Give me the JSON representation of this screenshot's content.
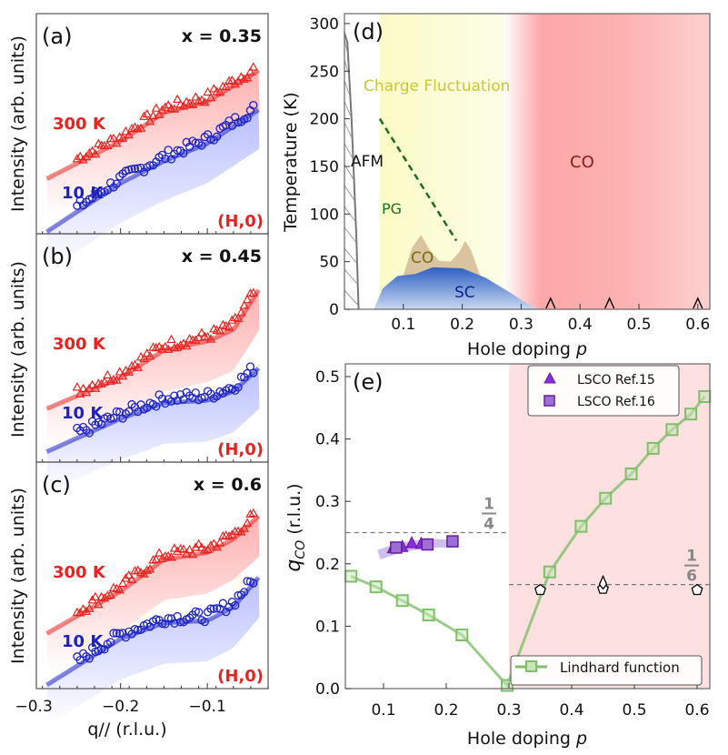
{
  "chart_data": [
    {
      "panel": "(a)",
      "type": "scatter",
      "composition": "x = 0.35",
      "direction": "(H,0)",
      "xlabel": "q// (r.l.u.)",
      "ylabel": "Intensity (arb. units)",
      "xlim": [
        -0.297,
        -0.03
      ],
      "xticks": [
        "−0.3",
        "−0.2",
        "−0.1"
      ],
      "x": [
        -0.25,
        -0.2,
        -0.15,
        -0.1,
        -0.05
      ],
      "series": [
        {
          "name": "300 K",
          "marker": "triangle",
          "color": "#e8231f",
          "values": [
            0.34,
            0.44,
            0.57,
            0.62,
            0.74
          ]
        },
        {
          "name": "10 K",
          "marker": "circle",
          "color": "#1c22c4",
          "values": [
            0.12,
            0.25,
            0.35,
            0.43,
            0.56
          ]
        }
      ]
    },
    {
      "panel": "(b)",
      "type": "scatter",
      "composition": "x = 0.45",
      "direction": "(H,0)",
      "ylabel": "Intensity (arb. units)",
      "x": [
        -0.25,
        -0.2,
        -0.15,
        -0.1,
        -0.07,
        -0.05
      ],
      "series": [
        {
          "name": "300 K",
          "marker": "triangle",
          "color": "#e8231f",
          "values": [
            0.31,
            0.39,
            0.51,
            0.55,
            0.6,
            0.72
          ]
        },
        {
          "name": "10 K",
          "marker": "circle",
          "color": "#1c22c4",
          "values": [
            0.125,
            0.21,
            0.28,
            0.29,
            0.33,
            0.4
          ]
        }
      ]
    },
    {
      "panel": "(c)",
      "type": "scatter",
      "composition": "x = 0.6",
      "direction": "(H,0)",
      "ylabel": "Intensity (arb. units)",
      "x": [
        -0.25,
        -0.2,
        -0.15,
        -0.1,
        -0.07,
        -0.05
      ],
      "series": [
        {
          "name": "300 K",
          "marker": "triangle",
          "color": "#e8231f",
          "values": [
            0.34,
            0.45,
            0.59,
            0.62,
            0.68,
            0.75
          ]
        },
        {
          "name": "10 K",
          "marker": "circle",
          "color": "#1c22c4",
          "values": [
            0.12,
            0.24,
            0.31,
            0.32,
            0.38,
            0.47
          ]
        }
      ]
    },
    {
      "panel": "(d)",
      "type": "area",
      "xlabel": "Hole doping p",
      "ylabel": "Temperature (K)",
      "xlim": [
        0,
        0.62
      ],
      "ylim": [
        0,
        310
      ],
      "xticks": [
        "0.1",
        "0.2",
        "0.3",
        "0.4",
        "0.5",
        "0.6"
      ],
      "yticks": [
        "0",
        "50",
        "100",
        "150",
        "200",
        "250",
        "300"
      ],
      "regions": {
        "afm": {
          "label": "AFM",
          "x": [
            0,
            0.005,
            0.012,
            0.02,
            0.024
          ],
          "y": [
            290,
            280,
            200,
            80,
            0
          ]
        },
        "charge_fluctuation": {
          "label": "Charge Fluctuation",
          "p_range": [
            0.06,
            0.27
          ],
          "color": "#fdfdd8"
        },
        "co_overdoped": {
          "label": "CO",
          "p_from": 0.3,
          "color": "#fda8a8"
        },
        "pg": {
          "label": "PG",
          "line": [
            [
              0.06,
              200
            ],
            [
              0.19,
              72
            ]
          ],
          "color": "#1d6e1d"
        },
        "co_dome": {
          "label": "CO",
          "color": "#d9c49f",
          "points": [
            [
              0.1,
              36
            ],
            [
              0.115,
              65
            ],
            [
              0.13,
              78
            ],
            [
              0.145,
              62
            ],
            [
              0.16,
              51
            ],
            [
              0.18,
              50
            ],
            [
              0.195,
              60
            ],
            [
              0.205,
              72
            ],
            [
              0.215,
              62
            ],
            [
              0.23,
              36
            ]
          ]
        },
        "sc_dome": {
          "label": "SC",
          "color": "#3a6cc8",
          "points": [
            [
              0.05,
              0
            ],
            [
              0.065,
              22
            ],
            [
              0.09,
              35
            ],
            [
              0.12,
              37
            ],
            [
              0.15,
              44
            ],
            [
              0.2,
              43
            ],
            [
              0.24,
              33
            ],
            [
              0.28,
              18
            ],
            [
              0.31,
              6
            ],
            [
              0.33,
              0
            ]
          ]
        }
      },
      "samples": {
        "marker": "open-triangle",
        "x": [
          0.35,
          0.45,
          0.6
        ],
        "y": [
          0,
          0,
          0
        ]
      }
    },
    {
      "panel": "(e)",
      "type": "line",
      "xlabel": "Hole doping p",
      "ylabel": "q_CO (r.l.u.)",
      "xlim": [
        0.04,
        0.62
      ],
      "ylim": [
        0,
        0.52
      ],
      "xticks": [
        "0.1",
        "0.2",
        "0.3",
        "0.4",
        "0.5",
        "0.6"
      ],
      "yticks": [
        "0.0",
        "0.1",
        "0.2",
        "0.3",
        "0.4",
        "0.5"
      ],
      "reference_lines": [
        {
          "label_num": "1",
          "label_den": "4",
          "y": 0.25,
          "x_range": [
            0.04,
            0.3
          ]
        },
        {
          "label_num": "1",
          "label_den": "6",
          "y": 0.1667,
          "x_range": [
            0.3,
            0.62
          ]
        }
      ],
      "shaded_from": 0.3,
      "series": [
        {
          "name": "Lindhard function",
          "marker": "square-open",
          "color": "#7fbf6a",
          "x": [
            0.048,
            0.088,
            0.13,
            0.172,
            0.225,
            0.297,
            0.365,
            0.415,
            0.454,
            0.495,
            0.53,
            0.56,
            0.59,
            0.612
          ],
          "y": [
            0.18,
            0.163,
            0.141,
            0.118,
            0.086,
            0.005,
            0.187,
            0.26,
            0.305,
            0.344,
            0.385,
            0.415,
            0.44,
            0.468
          ]
        },
        {
          "name": "LSCO Ref.15",
          "marker": "triangle",
          "color": "#8a2be2",
          "x": [
            0.115,
            0.13,
            0.145,
            0.16
          ],
          "y": [
            0.225,
            0.227,
            0.233,
            0.232
          ]
        },
        {
          "name": "LSCO Ref.16",
          "marker": "square",
          "color": "#9b6fd6",
          "x": [
            0.12,
            0.17,
            0.21
          ],
          "y": [
            0.226,
            0.231,
            0.236
          ]
        },
        {
          "marker": "pentagon-open",
          "color": "#000000",
          "x": [
            0.35,
            0.45,
            0.6
          ],
          "y": [
            0.158,
            0.16,
            0.158
          ]
        },
        {
          "marker": "diamond-open",
          "color": "#000000",
          "x": [
            0.45
          ],
          "y": [
            0.167
          ]
        }
      ]
    }
  ],
  "labels": {
    "a": "(a)",
    "b": "(b)",
    "c": "(c)",
    "d": "(d)",
    "e": "(e)",
    "x_a": "x = 0.35",
    "x_b": "x = 0.45",
    "x_c": "x = 0.6",
    "t300": "300 K",
    "t10": "10 K",
    "dir": "(H,0)",
    "int_ylabel": "Intensity (arb. units)",
    "q_xlabel": "q// (r.l.u.)",
    "afm": "AFM",
    "cf": "Charge Fluctuation",
    "pg": "PG",
    "co": "CO",
    "sc": "SC",
    "d_xlabel": "Hole doping ",
    "d_xlabel_p": "p",
    "d_ylabel": "Temperature (K)",
    "e_xlabel": "Hole doping ",
    "e_xlabel_p": "p",
    "e_ylabel_q": "q",
    "e_ylabel_sub": "CO",
    "e_ylabel_rest": " (r.l.u.)",
    "leg15": "LSCO Ref.15",
    "leg16": "LSCO Ref.16",
    "legL": "Lindhard function",
    "frac_num": "1",
    "frac4": "4",
    "frac6": "6"
  }
}
